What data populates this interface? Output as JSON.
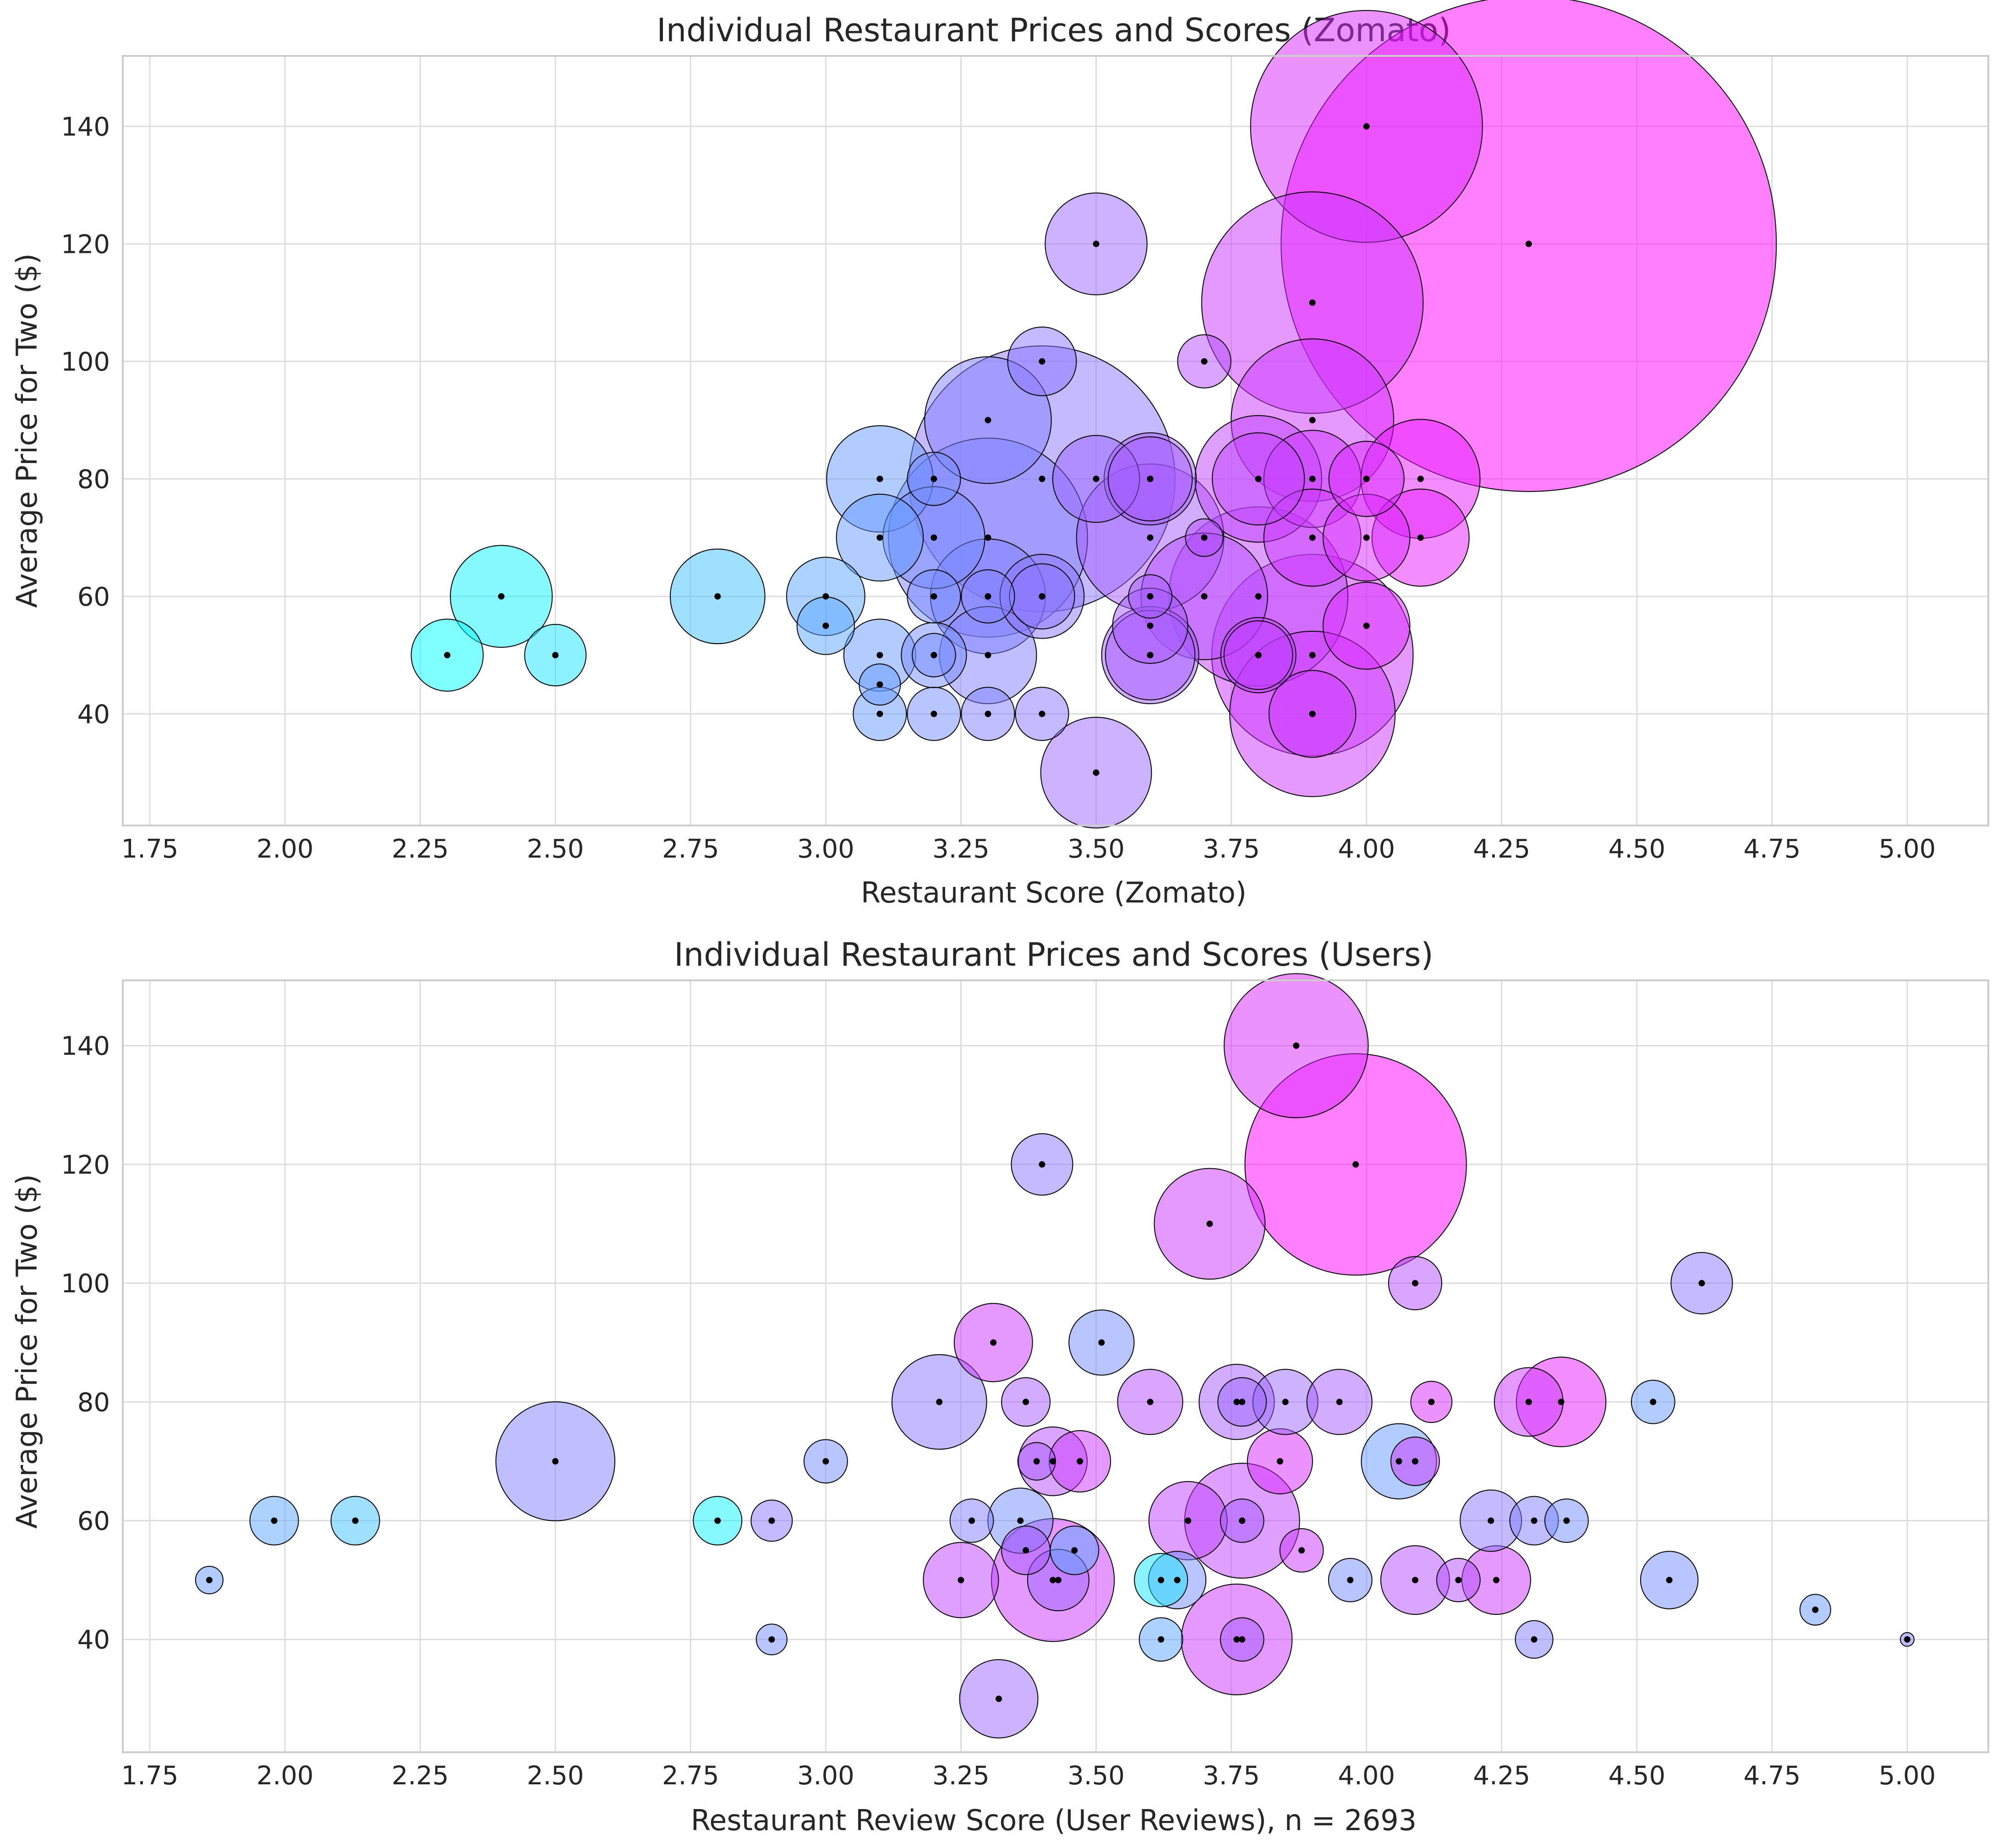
{
  "chart_data": [
    {
      "type": "scatter",
      "title": "Individual Restaurant Prices and Scores (Zomato)",
      "xlabel": "Restaurant Score (Zomato)",
      "ylabel": "Average Price for Two ($)",
      "xlim": [
        1.7,
        5.15
      ],
      "ylim": [
        21,
        152
      ],
      "xticks": [
        "1.75",
        "2.00",
        "2.25",
        "2.50",
        "2.75",
        "3.00",
        "3.25",
        "3.50",
        "3.75",
        "4.00",
        "4.25",
        "4.50",
        "4.75",
        "5.00"
      ],
      "yticks": [
        "40",
        "60",
        "80",
        "100",
        "120",
        "140"
      ],
      "grid": true,
      "color_encoding": "x (cyan low score to magenta high score)",
      "size_encoding": "number of reviews",
      "points": [
        {
          "x": 2.3,
          "y": 50,
          "size": 55
        },
        {
          "x": 2.4,
          "y": 60,
          "size": 110
        },
        {
          "x": 2.5,
          "y": 50,
          "size": 40
        },
        {
          "x": 2.8,
          "y": 60,
          "size": 95
        },
        {
          "x": 3.0,
          "y": 60,
          "size": 65
        },
        {
          "x": 3.0,
          "y": 55,
          "size": 35
        },
        {
          "x": 3.1,
          "y": 80,
          "size": 120
        },
        {
          "x": 3.1,
          "y": 70,
          "size": 80
        },
        {
          "x": 3.1,
          "y": 50,
          "size": 55
        },
        {
          "x": 3.1,
          "y": 45,
          "size": 18
        },
        {
          "x": 3.1,
          "y": 40,
          "size": 30
        },
        {
          "x": 3.2,
          "y": 80,
          "size": 30
        },
        {
          "x": 3.2,
          "y": 70,
          "size": 110
        },
        {
          "x": 3.2,
          "y": 60,
          "size": 30
        },
        {
          "x": 3.2,
          "y": 50,
          "size": 45
        },
        {
          "x": 3.2,
          "y": 50,
          "size": 20
        },
        {
          "x": 3.2,
          "y": 40,
          "size": 30
        },
        {
          "x": 3.3,
          "y": 90,
          "size": 170
        },
        {
          "x": 3.3,
          "y": 70,
          "size": 420
        },
        {
          "x": 3.3,
          "y": 60,
          "size": 140
        },
        {
          "x": 3.3,
          "y": 60,
          "size": 30
        },
        {
          "x": 3.3,
          "y": 50,
          "size": 100
        },
        {
          "x": 3.3,
          "y": 40,
          "size": 30
        },
        {
          "x": 3.4,
          "y": 100,
          "size": 50
        },
        {
          "x": 3.4,
          "y": 80,
          "size": 750
        },
        {
          "x": 3.4,
          "y": 60,
          "size": 75
        },
        {
          "x": 3.4,
          "y": 60,
          "size": 45
        },
        {
          "x": 3.4,
          "y": 40,
          "size": 30
        },
        {
          "x": 3.5,
          "y": 120,
          "size": 110
        },
        {
          "x": 3.5,
          "y": 80,
          "size": 80
        },
        {
          "x": 3.5,
          "y": 30,
          "size": 130
        },
        {
          "x": 3.6,
          "y": 80,
          "size": 90
        },
        {
          "x": 3.6,
          "y": 80,
          "size": 75
        },
        {
          "x": 3.6,
          "y": 70,
          "size": 230
        },
        {
          "x": 3.6,
          "y": 60,
          "size": 20
        },
        {
          "x": 3.6,
          "y": 55,
          "size": 60
        },
        {
          "x": 3.6,
          "y": 50,
          "size": 100
        },
        {
          "x": 3.6,
          "y": 50,
          "size": 85
        },
        {
          "x": 3.7,
          "y": 100,
          "size": 30
        },
        {
          "x": 3.7,
          "y": 70,
          "size": 15
        },
        {
          "x": 3.7,
          "y": 60,
          "size": 170
        },
        {
          "x": 3.8,
          "y": 80,
          "size": 170
        },
        {
          "x": 3.8,
          "y": 80,
          "size": 90
        },
        {
          "x": 3.8,
          "y": 60,
          "size": 340
        },
        {
          "x": 3.8,
          "y": 50,
          "size": 60
        },
        {
          "x": 3.8,
          "y": 50,
          "size": 50
        },
        {
          "x": 3.9,
          "y": 110,
          "size": 520
        },
        {
          "x": 3.9,
          "y": 90,
          "size": 280
        },
        {
          "x": 3.9,
          "y": 80,
          "size": 100
        },
        {
          "x": 3.9,
          "y": 70,
          "size": 100
        },
        {
          "x": 3.9,
          "y": 50,
          "size": 430
        },
        {
          "x": 3.9,
          "y": 40,
          "size": 290
        },
        {
          "x": 3.9,
          "y": 40,
          "size": 80
        },
        {
          "x": 4.0,
          "y": 140,
          "size": 570
        },
        {
          "x": 4.0,
          "y": 80,
          "size": 60
        },
        {
          "x": 4.0,
          "y": 70,
          "size": 80
        },
        {
          "x": 4.0,
          "y": 55,
          "size": 80
        },
        {
          "x": 4.1,
          "y": 80,
          "size": 150
        },
        {
          "x": 4.1,
          "y": 70,
          "size": 100
        },
        {
          "x": 4.3,
          "y": 120,
          "size": 2600
        }
      ]
    },
    {
      "type": "scatter",
      "title": "Individual Restaurant Prices and Scores (Users)",
      "xlabel": "Restaurant Review Score (User Reviews), n = 2693",
      "ylabel": "Average Price for Two ($)",
      "xlim": [
        1.7,
        5.15
      ],
      "ylim": [
        21,
        151
      ],
      "xticks": [
        "1.75",
        "2.00",
        "2.25",
        "2.50",
        "2.75",
        "3.00",
        "3.25",
        "3.50",
        "3.75",
        "4.00",
        "4.25",
        "4.50",
        "4.75",
        "5.00"
      ],
      "yticks": [
        "40",
        "60",
        "80",
        "100",
        "120",
        "140"
      ],
      "grid": true,
      "color_encoding": "Zomato score of the restaurant (cyan low to magenta high)",
      "size_encoding": "number of reviews",
      "points": [
        {
          "x": 1.86,
          "y": 50,
          "size": 8,
          "c": 3.1
        },
        {
          "x": 1.98,
          "y": 60,
          "size": 25,
          "c": 3.0
        },
        {
          "x": 2.13,
          "y": 60,
          "size": 25,
          "c": 2.8
        },
        {
          "x": 2.5,
          "y": 70,
          "size": 150,
          "c": 3.3
        },
        {
          "x": 2.8,
          "y": 60,
          "size": 25,
          "c": 2.4
        },
        {
          "x": 2.9,
          "y": 60,
          "size": 18,
          "c": 3.4
        },
        {
          "x": 2.9,
          "y": 40,
          "size": 10,
          "c": 3.2
        },
        {
          "x": 3.0,
          "y": 70,
          "size": 20,
          "c": 3.2
        },
        {
          "x": 3.21,
          "y": 80,
          "size": 95,
          "c": 3.4
        },
        {
          "x": 3.25,
          "y": 50,
          "size": 60,
          "c": 3.8
        },
        {
          "x": 3.27,
          "y": 60,
          "size": 20,
          "c": 3.3
        },
        {
          "x": 3.31,
          "y": 90,
          "size": 65,
          "c": 3.9
        },
        {
          "x": 3.32,
          "y": 30,
          "size": 65,
          "c": 3.5
        },
        {
          "x": 3.36,
          "y": 60,
          "size": 45,
          "c": 3.2
        },
        {
          "x": 3.37,
          "y": 80,
          "size": 25,
          "c": 3.6
        },
        {
          "x": 3.37,
          "y": 55,
          "size": 25,
          "c": 3.6
        },
        {
          "x": 3.39,
          "y": 70,
          "size": 15,
          "c": 3.6
        },
        {
          "x": 3.4,
          "y": 120,
          "size": 40,
          "c": 3.4
        },
        {
          "x": 3.42,
          "y": 70,
          "size": 50,
          "c": 3.7
        },
        {
          "x": 3.42,
          "y": 50,
          "size": 160,
          "c": 3.9
        },
        {
          "x": 3.43,
          "y": 50,
          "size": 40,
          "c": 3.5
        },
        {
          "x": 3.47,
          "y": 70,
          "size": 40,
          "c": 3.9
        },
        {
          "x": 3.46,
          "y": 55,
          "size": 25,
          "c": 3.0
        },
        {
          "x": 3.51,
          "y": 90,
          "size": 45,
          "c": 3.2
        },
        {
          "x": 3.6,
          "y": 80,
          "size": 45,
          "c": 3.7
        },
        {
          "x": 3.62,
          "y": 50,
          "size": 30,
          "c": 2.5
        },
        {
          "x": 3.62,
          "y": 40,
          "size": 20,
          "c": 3.0
        },
        {
          "x": 3.65,
          "y": 50,
          "size": 35,
          "c": 3.2
        },
        {
          "x": 3.67,
          "y": 60,
          "size": 65,
          "c": 3.8
        },
        {
          "x": 3.71,
          "y": 110,
          "size": 130,
          "c": 3.9
        },
        {
          "x": 3.76,
          "y": 80,
          "size": 60,
          "c": 3.6
        },
        {
          "x": 3.77,
          "y": 80,
          "size": 25,
          "c": 3.5
        },
        {
          "x": 3.77,
          "y": 60,
          "size": 140,
          "c": 3.8
        },
        {
          "x": 3.77,
          "y": 60,
          "size": 20,
          "c": 3.6
        },
        {
          "x": 3.76,
          "y": 40,
          "size": 130,
          "c": 3.9
        },
        {
          "x": 3.77,
          "y": 40,
          "size": 20,
          "c": 3.6
        },
        {
          "x": 3.84,
          "y": 70,
          "size": 45,
          "c": 4.0
        },
        {
          "x": 3.85,
          "y": 80,
          "size": 45,
          "c": 3.5
        },
        {
          "x": 3.87,
          "y": 140,
          "size": 220,
          "c": 4.0
        },
        {
          "x": 3.88,
          "y": 55,
          "size": 20,
          "c": 3.9
        },
        {
          "x": 3.95,
          "y": 80,
          "size": 45,
          "c": 3.6
        },
        {
          "x": 3.97,
          "y": 50,
          "size": 20,
          "c": 3.2
        },
        {
          "x": 3.98,
          "y": 120,
          "size": 520,
          "c": 4.3
        },
        {
          "x": 4.06,
          "y": 70,
          "size": 60,
          "c": 3.1
        },
        {
          "x": 4.09,
          "y": 100,
          "size": 30,
          "c": 3.7
        },
        {
          "x": 4.09,
          "y": 70,
          "size": 25,
          "c": 3.9
        },
        {
          "x": 4.09,
          "y": 50,
          "size": 50,
          "c": 3.7
        },
        {
          "x": 4.12,
          "y": 80,
          "size": 18,
          "c": 4.0
        },
        {
          "x": 4.17,
          "y": 50,
          "size": 20,
          "c": 3.7
        },
        {
          "x": 4.23,
          "y": 60,
          "size": 40,
          "c": 3.4
        },
        {
          "x": 4.24,
          "y": 50,
          "size": 50,
          "c": 3.9
        },
        {
          "x": 4.3,
          "y": 80,
          "size": 50,
          "c": 3.9
        },
        {
          "x": 4.31,
          "y": 60,
          "size": 25,
          "c": 3.3
        },
        {
          "x": 4.31,
          "y": 40,
          "size": 15,
          "c": 3.3
        },
        {
          "x": 4.36,
          "y": 80,
          "size": 85,
          "c": 4.1
        },
        {
          "x": 4.37,
          "y": 60,
          "size": 20,
          "c": 3.2
        },
        {
          "x": 4.53,
          "y": 80,
          "size": 20,
          "c": 3.1
        },
        {
          "x": 4.56,
          "y": 50,
          "size": 35,
          "c": 3.2
        },
        {
          "x": 4.62,
          "y": 100,
          "size": 40,
          "c": 3.4
        },
        {
          "x": 4.83,
          "y": 45,
          "size": 10,
          "c": 3.1
        },
        {
          "x": 5.0,
          "y": 40,
          "size": 2,
          "c": 3.3
        }
      ]
    }
  ]
}
